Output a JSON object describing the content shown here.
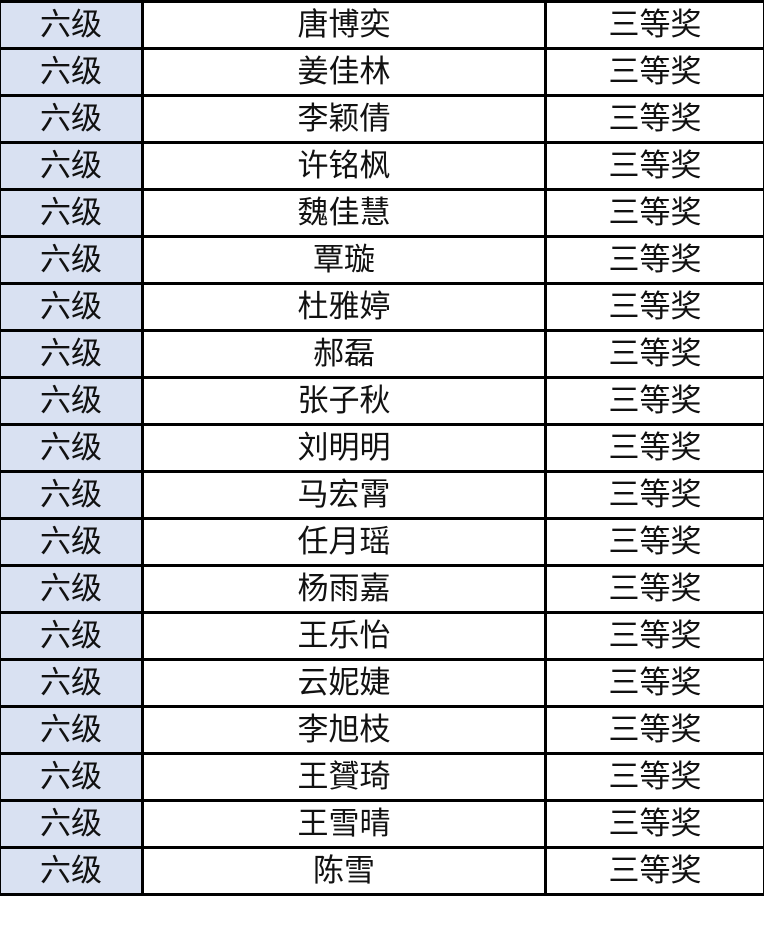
{
  "colors": {
    "grade_column_bg": "#d9e1f2",
    "border": "#000000"
  },
  "rows": [
    {
      "grade": "六级",
      "name": "唐博奕",
      "award": "三等奖"
    },
    {
      "grade": "六级",
      "name": "姜佳林",
      "award": "三等奖"
    },
    {
      "grade": "六级",
      "name": "李颖倩",
      "award": "三等奖"
    },
    {
      "grade": "六级",
      "name": "许铭枫",
      "award": "三等奖"
    },
    {
      "grade": "六级",
      "name": "魏佳慧",
      "award": "三等奖"
    },
    {
      "grade": "六级",
      "name": "覃璇",
      "award": "三等奖"
    },
    {
      "grade": "六级",
      "name": "杜雅婷",
      "award": "三等奖"
    },
    {
      "grade": "六级",
      "name": "郝磊",
      "award": "三等奖"
    },
    {
      "grade": "六级",
      "name": "张子秋",
      "award": "三等奖"
    },
    {
      "grade": "六级",
      "name": "刘明明",
      "award": "三等奖"
    },
    {
      "grade": "六级",
      "name": "马宏霄",
      "award": "三等奖"
    },
    {
      "grade": "六级",
      "name": "任月瑶",
      "award": "三等奖"
    },
    {
      "grade": "六级",
      "name": "杨雨嘉",
      "award": "三等奖"
    },
    {
      "grade": "六级",
      "name": "王乐怡",
      "award": "三等奖"
    },
    {
      "grade": "六级",
      "name": "云妮婕",
      "award": "三等奖"
    },
    {
      "grade": "六级",
      "name": "李旭枝",
      "award": "三等奖"
    },
    {
      "grade": "六级",
      "name": "王贇琦",
      "award": "三等奖"
    },
    {
      "grade": "六级",
      "name": "王雪晴",
      "award": "三等奖"
    },
    {
      "grade": "六级",
      "name": "陈雪",
      "award": "三等奖"
    }
  ]
}
